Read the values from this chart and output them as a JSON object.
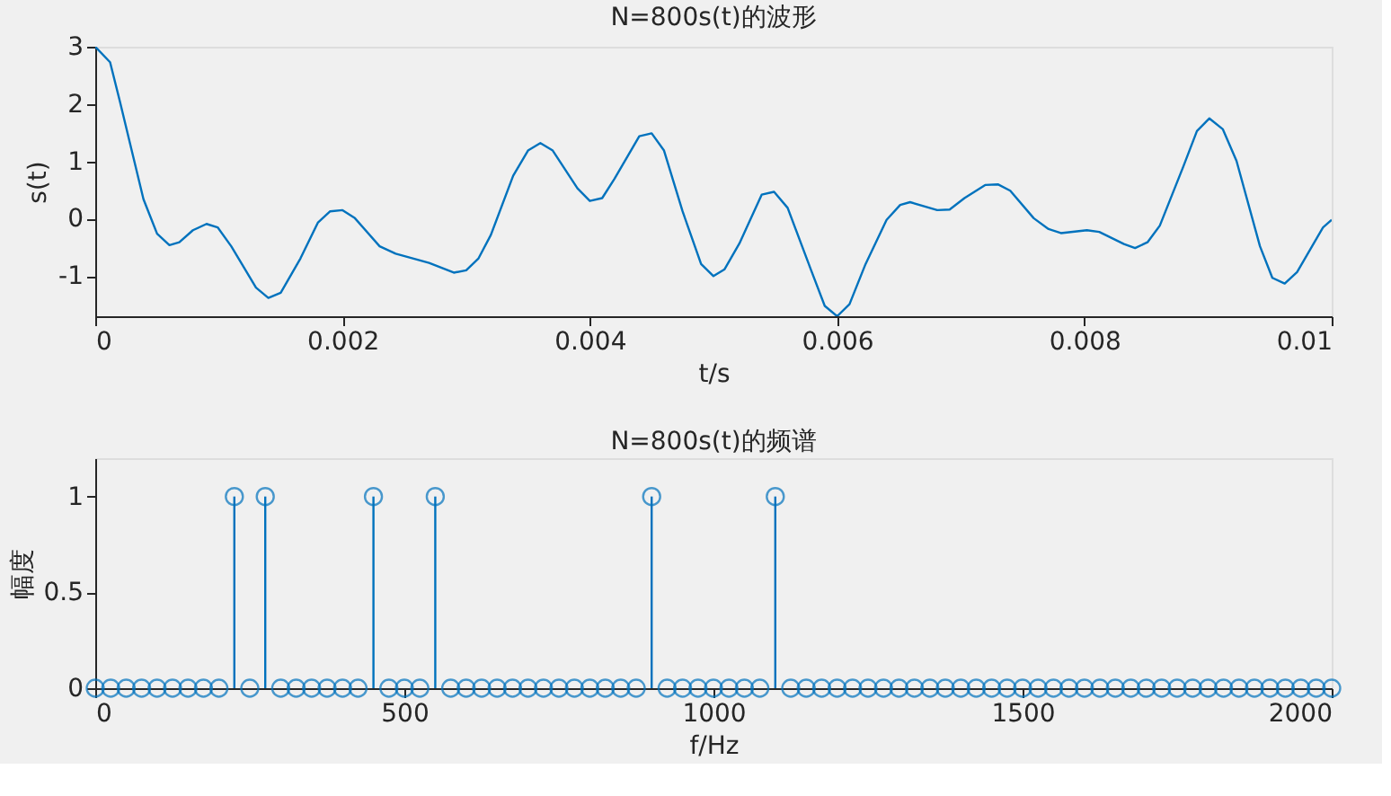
{
  "chart_data": [
    {
      "type": "line",
      "title": "N=800s(t)的波形",
      "xlabel": "t/s",
      "ylabel": "s(t)",
      "x": [
        0,
        0.00012,
        0.0002,
        0.00039,
        0.0005,
        0.0006,
        0.00068,
        0.00079,
        0.0009,
        0.00099,
        0.0011,
        0.0013,
        0.0014,
        0.0015,
        0.00166,
        0.0018,
        0.0019,
        0.002,
        0.0021,
        0.0023,
        0.00243,
        0.0027,
        0.0029,
        0.003,
        0.0031,
        0.0032,
        0.00338,
        0.0035,
        0.0036,
        0.0037,
        0.0039,
        0.004,
        0.0041,
        0.0042,
        0.0044,
        0.0045,
        0.0046,
        0.00475,
        0.0049,
        0.005,
        0.00509,
        0.00521,
        0.00539,
        0.00549,
        0.0056,
        0.00579,
        0.0059,
        0.006,
        0.0061,
        0.00623,
        0.0064,
        0.00651,
        0.00659,
        0.00681,
        0.00691,
        0.00703,
        0.0072,
        0.0073,
        0.0074,
        0.00759,
        0.00771,
        0.00781,
        0.00802,
        0.00812,
        0.00832,
        0.00841,
        0.00851,
        0.00861,
        0.0088,
        0.00891,
        0.00901,
        0.00912,
        0.00923,
        0.00942,
        0.00952,
        0.00962,
        0.00972,
        0.00993,
        0.01
      ],
      "series": [
        {
          "color": "#0072bd",
          "values": [
            3.0,
            2.73,
            2.04,
            0.34,
            -0.26,
            -0.46,
            -0.41,
            -0.2,
            -0.09,
            -0.15,
            -0.48,
            -1.2,
            -1.38,
            -1.29,
            -0.69,
            -0.07,
            0.13,
            0.15,
            0.01,
            -0.48,
            -0.61,
            -0.77,
            -0.94,
            -0.9,
            -0.69,
            -0.28,
            0.75,
            1.19,
            1.32,
            1.19,
            0.53,
            0.31,
            0.36,
            0.7,
            1.44,
            1.49,
            1.19,
            0.13,
            -0.79,
            -1.0,
            -0.88,
            -0.43,
            0.42,
            0.47,
            0.19,
            -0.9,
            -1.52,
            -1.7,
            -1.49,
            -0.79,
            -0.02,
            0.24,
            0.29,
            0.15,
            0.16,
            0.36,
            0.59,
            0.6,
            0.49,
            0.01,
            -0.18,
            -0.25,
            -0.2,
            -0.23,
            -0.44,
            -0.51,
            -0.41,
            -0.12,
            0.91,
            1.53,
            1.75,
            1.56,
            1.01,
            -0.48,
            -1.03,
            -1.13,
            -0.93,
            -0.15,
            -0.02
          ]
        }
      ],
      "xlim": [
        0,
        0.01
      ],
      "xticks": [
        0,
        0.002,
        0.004,
        0.006,
        0.008,
        0.01
      ],
      "ylim": [
        -1.7,
        3
      ],
      "yticks": [
        -1,
        0,
        1,
        2,
        3
      ],
      "grid": false,
      "legend": false,
      "marker": "none",
      "line_style": "solid"
    },
    {
      "type": "lollipop",
      "title": "N=800s(t)的频谱",
      "xlabel": "f/Hz",
      "ylabel": "幅度",
      "x": [
        0,
        25,
        50,
        75,
        100,
        125,
        150,
        175,
        200,
        225,
        250,
        275,
        300,
        325,
        350,
        375,
        400,
        425,
        450,
        475,
        500,
        525,
        550,
        575,
        600,
        625,
        650,
        675,
        700,
        725,
        750,
        775,
        800,
        825,
        850,
        875,
        900,
        925,
        950,
        975,
        1000,
        1025,
        1050,
        1075,
        1100,
        1125,
        1150,
        1175,
        1200,
        1225,
        1250,
        1275,
        1300,
        1325,
        1350,
        1375,
        1400,
        1425,
        1450,
        1475,
        1500,
        1525,
        1550,
        1575,
        1600,
        1625,
        1650,
        1675,
        1700,
        1725,
        1750,
        1775,
        1800,
        1825,
        1850,
        1875,
        1900,
        1925,
        1950,
        1975,
        2000
      ],
      "series": [
        {
          "color": "#0072bd",
          "values": [
            0,
            0,
            0,
            0,
            0,
            0,
            0,
            0,
            0,
            1,
            0,
            1,
            0,
            0,
            0,
            0,
            0,
            0,
            1,
            0,
            0,
            0,
            1,
            0,
            0,
            0,
            0,
            0,
            0,
            0,
            0,
            0,
            0,
            0,
            0,
            0,
            1,
            0,
            0,
            0,
            0,
            0,
            0,
            0,
            1,
            0,
            0,
            0,
            0,
            0,
            0,
            0,
            0,
            0,
            0,
            0,
            0,
            0,
            0,
            0,
            0,
            0,
            0,
            0,
            0,
            0,
            0,
            0,
            0,
            0,
            0,
            0,
            0,
            0,
            0,
            0,
            0,
            0,
            0,
            0,
            0
          ]
        }
      ],
      "xlim": [
        0,
        2000
      ],
      "xticks": [
        0,
        500,
        1000,
        1500,
        2000
      ],
      "ylim": [
        0,
        1.2
      ],
      "yticks": [
        0,
        0.5,
        1
      ],
      "grid": false,
      "legend": false,
      "marker": "circle"
    }
  ]
}
